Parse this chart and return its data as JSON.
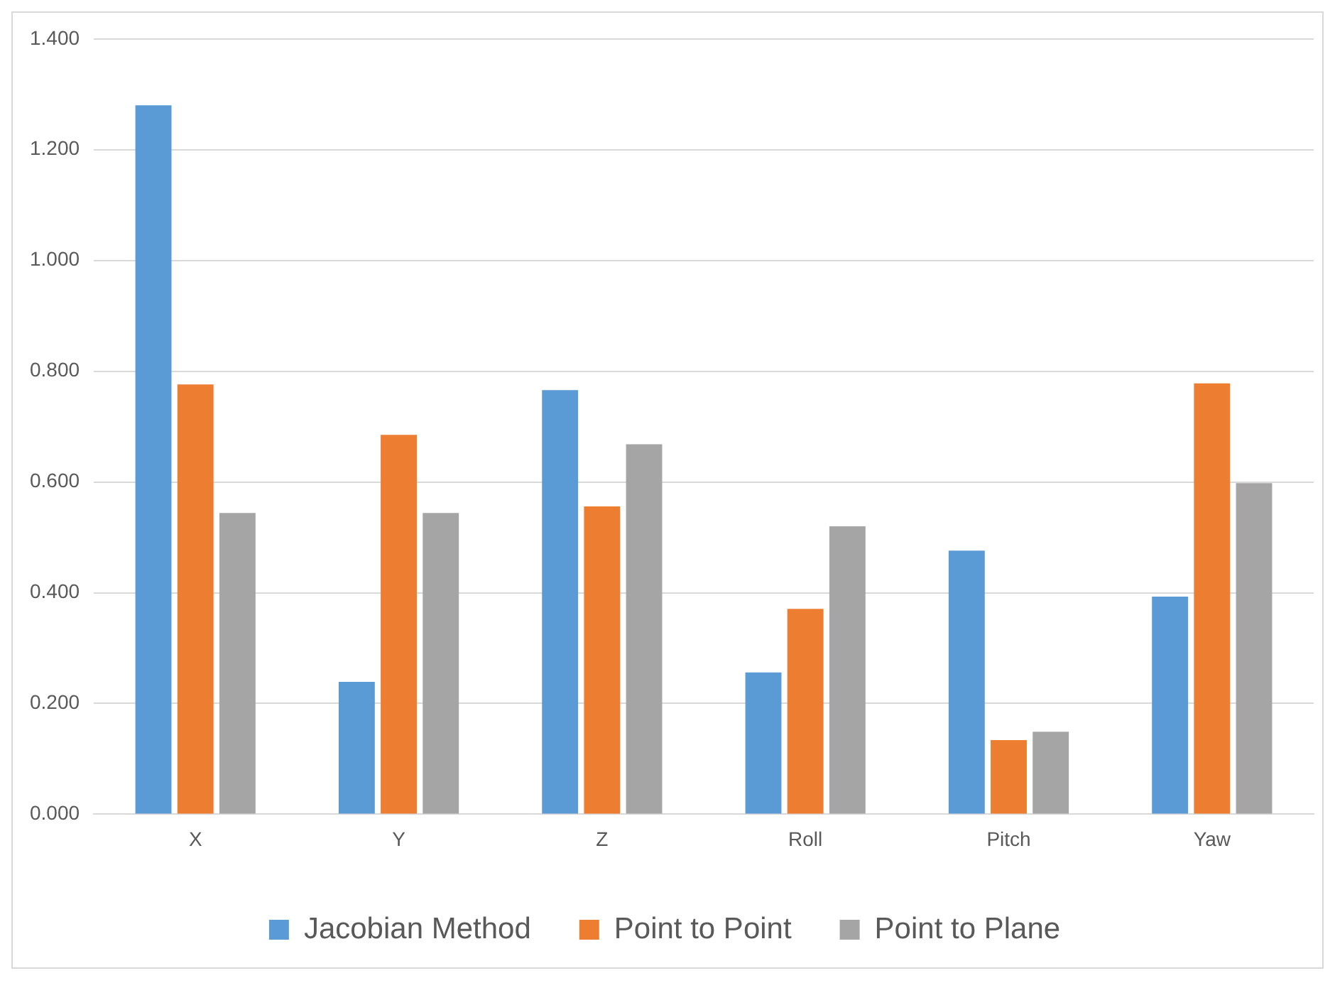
{
  "chart_data": {
    "type": "bar",
    "categories": [
      "X",
      "Y",
      "Z",
      "Roll",
      "Pitch",
      "Yaw"
    ],
    "series": [
      {
        "name": "Jacobian Method",
        "color": "#5b9bd5",
        "values": [
          1.28,
          0.239,
          0.766,
          0.256,
          0.476,
          0.393
        ]
      },
      {
        "name": "Point to Point",
        "color": "#ed7d31",
        "values": [
          0.776,
          0.685,
          0.556,
          0.371,
          0.134,
          0.778
        ]
      },
      {
        "name": "Point to Plane",
        "color": "#a5a5a5",
        "values": [
          0.544,
          0.544,
          0.668,
          0.52,
          0.149,
          0.598
        ]
      }
    ],
    "ylim": [
      0,
      1.4
    ],
    "yticks": [
      {
        "value": 0,
        "label": "0.000"
      },
      {
        "value": 0.2,
        "label": "0.200"
      },
      {
        "value": 0.4,
        "label": "0.400"
      },
      {
        "value": 0.6,
        "label": "0.600"
      },
      {
        "value": 0.8,
        "label": "0.800"
      },
      {
        "value": 1,
        "label": "1.000"
      },
      {
        "value": 1.2,
        "label": "1.200"
      },
      {
        "value": 1.4,
        "label": "1.400"
      }
    ],
    "grid": "y",
    "legend": "bottom"
  }
}
